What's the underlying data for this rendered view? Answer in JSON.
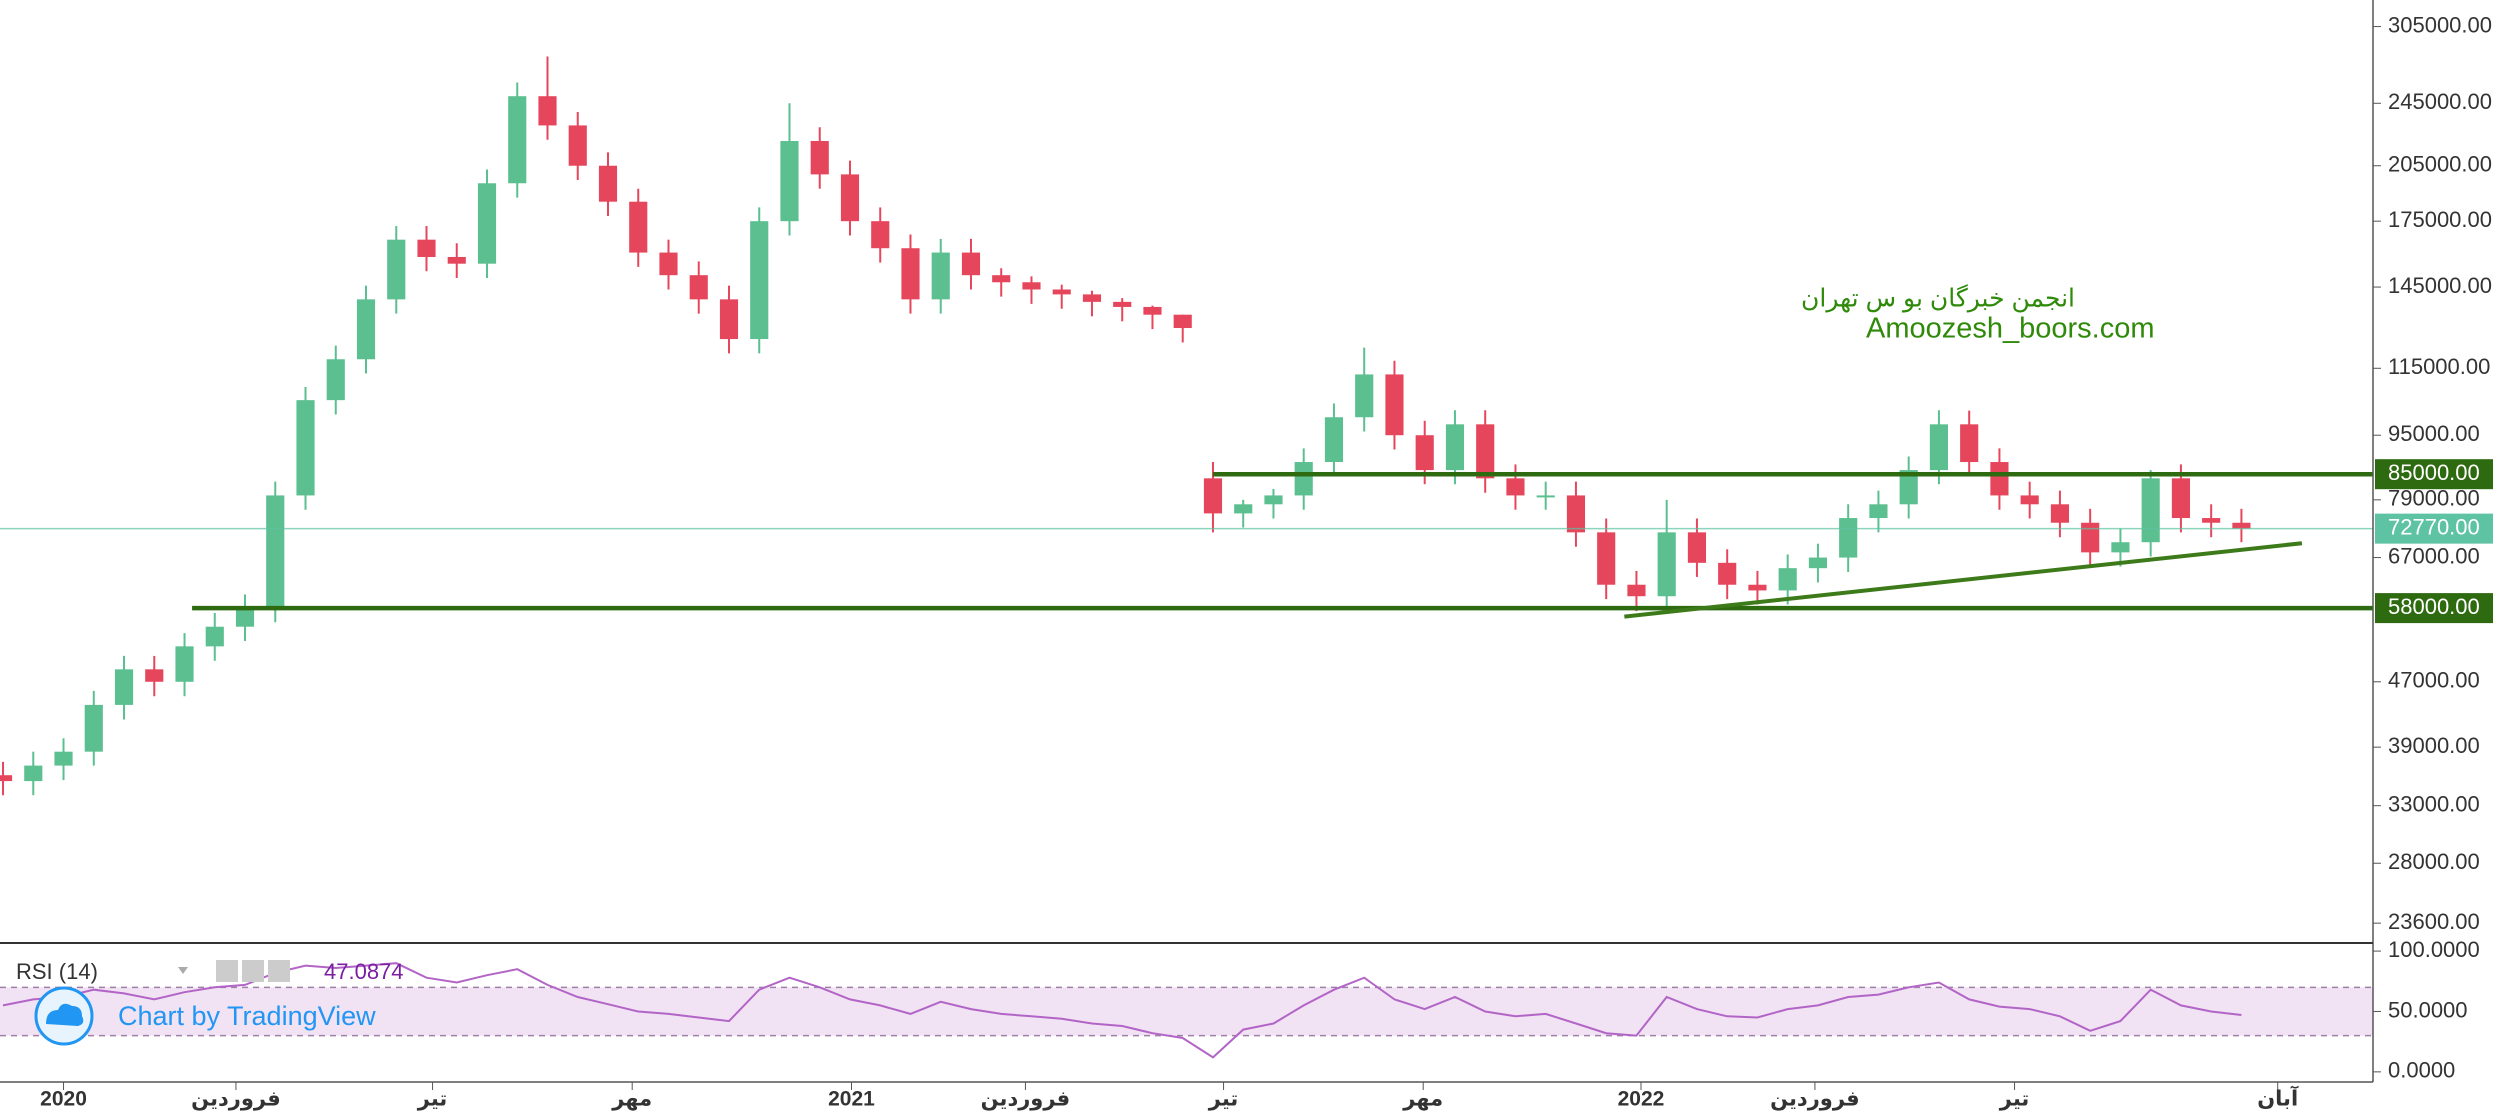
{
  "chart_data": [
    {
      "type": "candlestick",
      "x": [
        -4,
        -2,
        0,
        2,
        4,
        6,
        8,
        10,
        12,
        14,
        16,
        18,
        20,
        22,
        24,
        26,
        28,
        30,
        32,
        34,
        36,
        38,
        40,
        42,
        44,
        46,
        48,
        50,
        52,
        54,
        56,
        58,
        60,
        62,
        64,
        66,
        68,
        70,
        72,
        74,
        76,
        78,
        80,
        82,
        84,
        86,
        88,
        90,
        92,
        94,
        96,
        98,
        100,
        102,
        104,
        106,
        108,
        110,
        112,
        114,
        116,
        118,
        120,
        122,
        124,
        126,
        128,
        130,
        132,
        134,
        136,
        138,
        140,
        142,
        144
      ],
      "open": [
        36000,
        35400,
        37000,
        38500,
        44000,
        48700,
        47000,
        52000,
        55000,
        58000,
        80000,
        105000,
        118000,
        140000,
        166000,
        158000,
        155000,
        195000,
        250000,
        230000,
        205000,
        185000,
        160000,
        150000,
        140000,
        125000,
        175000,
        220000,
        200000,
        175000,
        162000,
        140000,
        160000,
        150000,
        147000,
        144000,
        142000,
        139000,
        137000,
        134000,
        84000,
        76000,
        78000,
        80000,
        88000,
        100000,
        113000,
        95000,
        86000,
        98000,
        84000,
        80000,
        80000,
        72000,
        62000,
        60000,
        72000,
        66000,
        62000,
        61000,
        65000,
        67000,
        75000,
        78000,
        86000,
        98000,
        88000,
        80000,
        78000,
        74000,
        68000,
        70000,
        84000,
        75000,
        74000
      ],
      "high": [
        37400,
        38500,
        40000,
        45800,
        50600,
        50600,
        54000,
        57200,
        60300,
        83200,
        109000,
        122700,
        145600,
        172600,
        172600,
        164300,
        202800,
        260000,
        280000,
        239000,
        213000,
        192000,
        166000,
        156000,
        145600,
        182000,
        245000,
        228800,
        208000,
        182000,
        168500,
        166400,
        166400,
        153000,
        149500,
        146000,
        143500,
        140500,
        137500,
        134000,
        88000,
        79000,
        81500,
        91500,
        104000,
        122000,
        117500,
        99000,
        102000,
        102000,
        87400,
        83200,
        83200,
        74900,
        64500,
        79000,
        74900,
        68600,
        64500,
        67600,
        69700,
        78000,
        81100,
        89400,
        102000,
        101900,
        91500,
        83200,
        81100,
        77000,
        72800,
        86000,
        87400,
        78000,
        77000
      ],
      "low": [
        34000,
        34000,
        35500,
        37000,
        42200,
        45100,
        45100,
        49900,
        52800,
        55700,
        76800,
        100800,
        113300,
        134400,
        151700,
        148800,
        148800,
        187200,
        220800,
        196800,
        177600,
        153600,
        144000,
        134400,
        120000,
        120000,
        168000,
        192000,
        168000,
        155500,
        134400,
        134400,
        144000,
        141100,
        138200,
        136300,
        133400,
        131500,
        128600,
        123800,
        72000,
        73000,
        74900,
        76800,
        84500,
        96000,
        91200,
        82600,
        82600,
        80600,
        76800,
        76800,
        69100,
        59500,
        57500,
        57600,
        63400,
        59500,
        58600,
        58600,
        62400,
        64300,
        72000,
        74900,
        82600,
        84500,
        76800,
        74900,
        71000,
        65300,
        65300,
        67200,
        72000,
        71000,
        70000
      ],
      "close": [
        35400,
        37000,
        38500,
        44000,
        48700,
        47000,
        52000,
        55000,
        58000,
        80000,
        105000,
        118000,
        140000,
        166000,
        158000,
        155000,
        195000,
        250000,
        230000,
        205000,
        185000,
        160000,
        150000,
        140000,
        125000,
        175000,
        220000,
        200000,
        175000,
        162000,
        140000,
        160000,
        150000,
        147000,
        144000,
        142000,
        139000,
        137000,
        134000,
        129000,
        76000,
        78000,
        80000,
        88000,
        100000,
        113000,
        95000,
        86000,
        98000,
        84000,
        80000,
        80000,
        72000,
        62000,
        60000,
        72000,
        66000,
        62000,
        61000,
        65000,
        67000,
        75000,
        78000,
        86000,
        98000,
        88000,
        80000,
        78000,
        74000,
        68000,
        70000,
        84000,
        75000,
        74000,
        72770
      ],
      "up_color": "#5bbf90",
      "down_color": "#e6465c",
      "log_scale": true,
      "xlim": [
        -4.2,
        152.7
      ],
      "xticks": [
        {
          "value": 0,
          "label": "2020"
        },
        {
          "value": 11.4,
          "label": "فروردین"
        },
        {
          "value": 24.4,
          "label": "تیر"
        },
        {
          "value": 37.6,
          "label": "مهر"
        },
        {
          "value": 52.1,
          "label": "2021"
        },
        {
          "value": 63.6,
          "label": "فروردین"
        },
        {
          "value": 76.7,
          "label": "تیر"
        },
        {
          "value": 89.9,
          "label": "مهر"
        },
        {
          "value": 104.3,
          "label": "2022"
        },
        {
          "value": 115.8,
          "label": "فروردین"
        },
        {
          "value": 129,
          "label": "تیر"
        },
        {
          "value": 146.4,
          "label": "آبان"
        }
      ],
      "ylim": [
        22300,
        329000
      ],
      "yticks": [
        {
          "value": 305000,
          "label": "305000.00"
        },
        {
          "value": 245000,
          "label": "245000.00"
        },
        {
          "value": 205000,
          "label": "205000.00"
        },
        {
          "value": 175000,
          "label": "175000.00"
        },
        {
          "value": 145000,
          "label": "145000.00"
        },
        {
          "value": 115000,
          "label": "115000.00"
        },
        {
          "value": 95000,
          "label": "95000.00"
        },
        {
          "value": 79000,
          "label": "79000.00"
        },
        {
          "value": 67000,
          "label": "67000.00"
        },
        {
          "value": 47000,
          "label": "47000.00"
        },
        {
          "value": 39000,
          "label": "39000.00"
        },
        {
          "value": 33000,
          "label": "33000.00"
        },
        {
          "value": 28000,
          "label": "28000.00"
        },
        {
          "value": 23600,
          "label": "23600.00"
        }
      ],
      "hlines": [
        {
          "value": 85000,
          "label": "85000.00",
          "from": 76,
          "color": "#2d6a10"
        },
        {
          "value": 58000,
          "label": "58000.00",
          "from": 8.5,
          "color": "#2d6a10"
        }
      ],
      "last_price": {
        "value": 72770,
        "label": "72770.00",
        "color": "#5ec3a2"
      },
      "trendline": {
        "x": [
          103.2,
          148
        ],
        "y": [
          56600,
          69800
        ],
        "color": "#3c7a1a"
      },
      "annotations": [
        "انجمن خبرگان بو س تهران",
        "Amoozesh_boors.com"
      ]
    },
    {
      "type": "line",
      "name": "RSI (14)",
      "x": [
        -4,
        -2,
        0,
        2,
        4,
        6,
        8,
        10,
        12,
        14,
        16,
        18,
        20,
        22,
        24,
        26,
        28,
        30,
        32,
        34,
        36,
        38,
        40,
        42,
        44,
        46,
        48,
        50,
        52,
        54,
        56,
        58,
        60,
        62,
        64,
        66,
        68,
        70,
        72,
        74,
        76,
        78,
        80,
        82,
        84,
        86,
        88,
        90,
        92,
        94,
        96,
        98,
        100,
        102,
        104,
        106,
        108,
        110,
        112,
        114,
        116,
        118,
        120,
        122,
        124,
        126,
        128,
        130,
        132,
        134,
        136,
        138,
        140,
        142,
        144
      ],
      "values": [
        55,
        60,
        62,
        68,
        65,
        60,
        66,
        70,
        72,
        82,
        88,
        86,
        88,
        90,
        78,
        74,
        80,
        85,
        72,
        62,
        56,
        50,
        48,
        45,
        42,
        68,
        78,
        70,
        60,
        55,
        48,
        58,
        52,
        48,
        46,
        44,
        40,
        38,
        32,
        28,
        12,
        35,
        40,
        55,
        68,
        78,
        60,
        52,
        62,
        50,
        46,
        48,
        40,
        32,
        30,
        62,
        52,
        46,
        45,
        52,
        55,
        62,
        64,
        70,
        74,
        60,
        54,
        52,
        46,
        34,
        42,
        68,
        55,
        50,
        47.0874
      ],
      "color": "#b265c6",
      "bands": [
        70,
        30
      ],
      "band_color": "#f1e2f4",
      "xlim": [
        -4.2,
        152.7
      ],
      "ylim": [
        -8.4,
        106.7
      ],
      "yticks": [
        {
          "value": 100,
          "label": "100.0000"
        },
        {
          "value": 50,
          "label": "50.0000"
        },
        {
          "value": 0,
          "label": "0.0000"
        }
      ],
      "watermark": "Chart by TradingView"
    }
  ]
}
